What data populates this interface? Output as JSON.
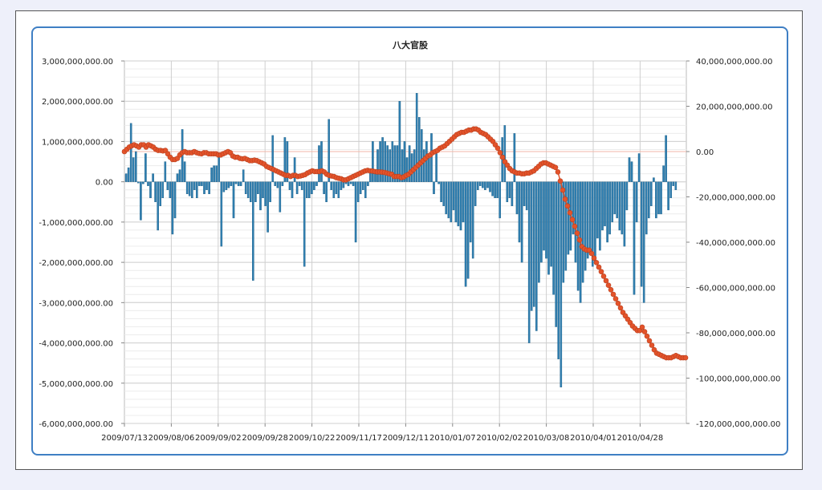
{
  "chart_data": {
    "type": "bar+line",
    "title": "八大官股",
    "x_tick_labels": [
      "2009/07/13",
      "2009/08/06",
      "2009/09/02",
      "2009/09/28",
      "2009/10/22",
      "2009/11/17",
      "2009/12/11",
      "2010/01/07",
      "2010/02/02",
      "2010/03/08",
      "2010/04/01",
      "2010/04/28"
    ],
    "y_left": {
      "range": [
        -6000000000,
        3000000000
      ],
      "ticks": [
        3000000000,
        2000000000,
        1000000000,
        0,
        -1000000000,
        -2000000000,
        -3000000000,
        -4000000000,
        -5000000000,
        -6000000000
      ],
      "tick_labels": [
        "3,000,000,000.00",
        "2,000,000,000.00",
        "1,000,000,000.00",
        "0.00",
        "-1,000,000,000.00",
        "-2,000,000,000.00",
        "-3,000,000,000.00",
        "-4,000,000,000.00",
        "-5,000,000,000.00",
        "-6,000,000,000.00"
      ]
    },
    "y_right": {
      "range": [
        -120000000000,
        40000000000
      ],
      "ticks": [
        40000000000,
        20000000000,
        0,
        -20000000000,
        -40000000000,
        -60000000000,
        -80000000000,
        -100000000000,
        -120000000000
      ],
      "tick_labels": [
        "40,000,000,000.00",
        "20,000,000,000.00",
        "0.00",
        "-20,000,000,000.00",
        "-40,000,000,000.00",
        "-60,000,000,000.00",
        "-80,000,000,000.00",
        "-100,000,000,000.00",
        "-120,000,000,000.00"
      ]
    },
    "series": [
      {
        "type": "bar",
        "axis": "left",
        "color": "#2f7fb1",
        "values": [
          200000000,
          350000000,
          1450000000,
          600000000,
          750000000,
          -30000000,
          -950000000,
          -50000000,
          700000000,
          -100000000,
          -400000000,
          200000000,
          -500000000,
          -1200000000,
          -600000000,
          -400000000,
          500000000,
          -200000000,
          -400000000,
          -1300000000,
          -900000000,
          200000000,
          300000000,
          1300000000,
          500000000,
          -300000000,
          -350000000,
          -400000000,
          -200000000,
          -400000000,
          -100000000,
          -100000000,
          -300000000,
          -200000000,
          -300000000,
          350000000,
          400000000,
          400000000,
          600000000,
          -1600000000,
          -250000000,
          -200000000,
          -150000000,
          -100000000,
          -900000000,
          -50000000,
          -100000000,
          -100000000,
          300000000,
          -300000000,
          -400000000,
          -500000000,
          -2450000000,
          -500000000,
          -300000000,
          -700000000,
          -400000000,
          -600000000,
          -1250000000,
          -500000000,
          1150000000,
          -100000000,
          -150000000,
          -750000000,
          -100000000,
          1100000000,
          1000000000,
          -200000000,
          -400000000,
          600000000,
          -300000000,
          -100000000,
          -200000000,
          -2100000000,
          -400000000,
          -400000000,
          -300000000,
          -200000000,
          -100000000,
          900000000,
          1000000000,
          -300000000,
          -500000000,
          1550000000,
          -200000000,
          -400000000,
          -300000000,
          -400000000,
          -200000000,
          -150000000,
          -50000000,
          -100000000,
          -50000000,
          -100000000,
          -1500000000,
          -500000000,
          -300000000,
          -200000000,
          -400000000,
          -100000000,
          300000000,
          1000000000,
          200000000,
          800000000,
          1000000000,
          1100000000,
          1000000000,
          900000000,
          800000000,
          1000000000,
          900000000,
          900000000,
          2000000000,
          800000000,
          1000000000,
          600000000,
          900000000,
          700000000,
          800000000,
          2200000000,
          1600000000,
          1300000000,
          800000000,
          1000000000,
          700000000,
          1200000000,
          -300000000,
          700000000,
          -50000000,
          -500000000,
          -600000000,
          -800000000,
          -900000000,
          -1000000000,
          -700000000,
          -1000000000,
          -1100000000,
          -1200000000,
          -1000000000,
          -2600000000,
          -2400000000,
          -1500000000,
          -1900000000,
          -600000000,
          -200000000,
          -100000000,
          -150000000,
          -200000000,
          -150000000,
          -250000000,
          -350000000,
          -400000000,
          -400000000,
          -900000000,
          1100000000,
          1400000000,
          -500000000,
          -400000000,
          -600000000,
          1200000000,
          -800000000,
          -1500000000,
          -2000000000,
          -600000000,
          -700000000,
          -4000000000,
          -3200000000,
          -3100000000,
          -3700000000,
          -2500000000,
          -2000000000,
          -1700000000,
          -1900000000,
          -2300000000,
          -2100000000,
          -2800000000,
          -3600000000,
          -4400000000,
          -5100000000,
          -2500000000,
          -2200000000,
          -1800000000,
          -1700000000,
          -1300000000,
          -2000000000,
          -2700000000,
          -3000000000,
          -2500000000,
          -2200000000,
          -1900000000,
          -1700000000,
          -2100000000,
          -2000000000,
          -1400000000,
          -1700000000,
          -1200000000,
          -1100000000,
          -1500000000,
          -1300000000,
          -1000000000,
          -800000000,
          -900000000,
          -1200000000,
          -1300000000,
          -1600000000,
          -700000000,
          600000000,
          500000000,
          -2800000000,
          -1000000000,
          700000000,
          -2600000000,
          -3000000000,
          -1300000000,
          -900000000,
          -600000000,
          100000000,
          -900000000,
          -800000000,
          -800000000,
          400000000,
          1150000000,
          -700000000,
          -400000000,
          -100000000,
          -200000000
        ],
        "x_step": 3.043
      },
      {
        "type": "line",
        "axis": "right",
        "marker": "circle",
        "color": "#e4532a",
        "x": [
          155,
          158,
          161,
          164,
          167,
          170,
          173,
          176,
          179,
          182,
          185,
          188,
          191,
          194,
          197,
          200,
          203,
          206,
          209,
          212,
          215,
          218,
          221,
          224,
          227,
          230,
          233,
          236,
          239,
          242,
          245,
          248,
          251,
          254,
          257,
          260,
          263,
          266,
          269,
          272,
          275,
          278,
          281,
          284,
          287,
          290,
          293,
          296,
          299,
          302,
          305,
          308,
          311,
          314,
          317,
          320,
          323,
          326,
          329,
          332,
          335,
          338,
          341,
          344,
          347,
          350,
          353,
          356,
          359,
          362,
          365,
          368,
          371,
          374,
          377,
          380,
          383,
          386,
          389,
          392,
          395,
          398,
          401,
          404,
          407,
          410,
          413,
          416,
          419,
          422,
          425,
          428,
          431,
          434,
          437,
          440,
          443,
          446,
          449,
          452,
          455,
          458,
          461,
          464,
          467,
          470,
          473,
          476,
          479,
          482,
          485,
          488,
          491,
          494,
          497,
          500,
          503,
          506,
          509,
          512,
          515,
          518,
          521,
          524,
          527,
          530,
          533,
          536,
          539,
          542,
          545,
          548,
          551,
          554,
          557,
          560,
          563,
          566,
          569,
          572,
          575,
          578,
          581,
          584,
          587,
          590,
          593,
          596,
          599,
          602,
          605,
          608,
          611,
          614,
          617,
          620,
          623,
          626,
          629,
          632,
          635,
          638,
          641,
          644,
          647,
          650,
          653,
          656,
          659,
          662,
          665,
          668,
          671,
          674,
          677,
          680,
          683,
          686,
          689,
          692,
          695,
          698,
          701,
          704,
          707,
          710,
          713,
          716,
          719,
          722,
          725,
          728,
          731,
          734,
          737,
          740,
          743,
          746,
          749,
          752,
          755,
          758,
          761,
          764,
          767,
          770,
          773,
          776,
          779,
          782,
          785,
          788,
          791,
          794,
          797,
          800,
          803,
          806,
          809,
          812,
          815,
          818,
          821,
          824,
          827,
          830,
          833,
          836,
          839,
          842,
          845,
          848,
          851,
          854
        ],
        "values": [
          0,
          1000000000,
          2000000000,
          2500000000,
          3000000000,
          2500000000,
          2000000000,
          3000000000,
          3000000000,
          2000000000,
          3000000000,
          2500000000,
          2000000000,
          1000000000,
          500000000,
          500000000,
          300000000,
          500000000,
          -1000000000,
          -2500000000,
          -3500000000,
          -3500000000,
          -3000000000,
          -1500000000,
          -500000000,
          0,
          -500000000,
          -500000000,
          -500000000,
          0,
          -500000000,
          -800000000,
          -1000000000,
          -500000000,
          -500000000,
          -1000000000,
          -1000000000,
          -1000000000,
          -1000000000,
          -1500000000,
          -1500000000,
          -1000000000,
          -500000000,
          0,
          -500000000,
          -2000000000,
          -2500000000,
          -2500000000,
          -3000000000,
          -3200000000,
          -3000000000,
          -3500000000,
          -4000000000,
          -4000000000,
          -3800000000,
          -4000000000,
          -4500000000,
          -5000000000,
          -5500000000,
          -6500000000,
          -7000000000,
          -7500000000,
          -8000000000,
          -8500000000,
          -9000000000,
          -9500000000,
          -10000000000,
          -10500000000,
          -10500000000,
          -11000000000,
          -10500000000,
          -10500000000,
          -11000000000,
          -10800000000,
          -10500000000,
          -10200000000,
          -9500000000,
          -9000000000,
          -8500000000,
          -8800000000,
          -8800000000,
          -8800000000,
          -8500000000,
          -9000000000,
          -10000000000,
          -10500000000,
          -10800000000,
          -11000000000,
          -11500000000,
          -11800000000,
          -12000000000,
          -12500000000,
          -12500000000,
          -12000000000,
          -11500000000,
          -11000000000,
          -10500000000,
          -10000000000,
          -9500000000,
          -9000000000,
          -8500000000,
          -8300000000,
          -8500000000,
          -8600000000,
          -8800000000,
          -9000000000,
          -9000000000,
          -9100000000,
          -9200000000,
          -9500000000,
          -9800000000,
          -10000000000,
          -11000000000,
          -11000000000,
          -11000000000,
          -11500000000,
          -11200000000,
          -10500000000,
          -10000000000,
          -9000000000,
          -8000000000,
          -7000000000,
          -6000000000,
          -5000000000,
          -4000000000,
          -3000000000,
          -2000000000,
          -1500000000,
          -500000000,
          0,
          500000000,
          1500000000,
          2000000000,
          2500000000,
          3500000000,
          4500000000,
          5500000000,
          6500000000,
          7500000000,
          8000000000,
          8500000000,
          8500000000,
          9000000000,
          9500000000,
          9500000000,
          10000000000,
          10000000000,
          9500000000,
          8500000000,
          8000000000,
          7500000000,
          6500000000,
          5500000000,
          4500000000,
          3000000000,
          1500000000,
          -500000000,
          -2500000000,
          -4500000000,
          -6000000000,
          -7500000000,
          -8500000000,
          -9000000000,
          -9500000000,
          -9500000000,
          -9800000000,
          -9800000000,
          -9500000000,
          -9500000000,
          -9000000000,
          -8500000000,
          -7500000000,
          -6500000000,
          -5500000000,
          -5000000000,
          -5000000000,
          -5500000000,
          -6000000000,
          -6500000000,
          -7000000000,
          -9000000000,
          -13000000000,
          -17000000000,
          -21000000000,
          -24000000000,
          -27000000000,
          -30000000000,
          -33000000000,
          -36000000000,
          -39000000000,
          -42000000000,
          -43000000000,
          -43500000000,
          -43500000000,
          -45000000000,
          -47000000000,
          -49000000000,
          -51000000000,
          -53000000000,
          -55000000000,
          -57000000000,
          -59000000000,
          -61000000000,
          -63000000000,
          -65000000000,
          -67000000000,
          -69000000000,
          -71000000000,
          -72500000000,
          -74000000000,
          -75500000000,
          -77000000000,
          -78000000000,
          -79000000000,
          -79000000000,
          -77500000000,
          -79500000000,
          -81500000000,
          -83500000000,
          -85500000000,
          -87500000000,
          -89000000000,
          -89500000000,
          -90000000000,
          -90500000000,
          -91000000000,
          -91000000000,
          -91000000000,
          -90500000000,
          -90000000000,
          -90500000000,
          -91000000000,
          -91000000000,
          -91000000000
        ]
      }
    ],
    "grid": true,
    "legend": "none"
  }
}
